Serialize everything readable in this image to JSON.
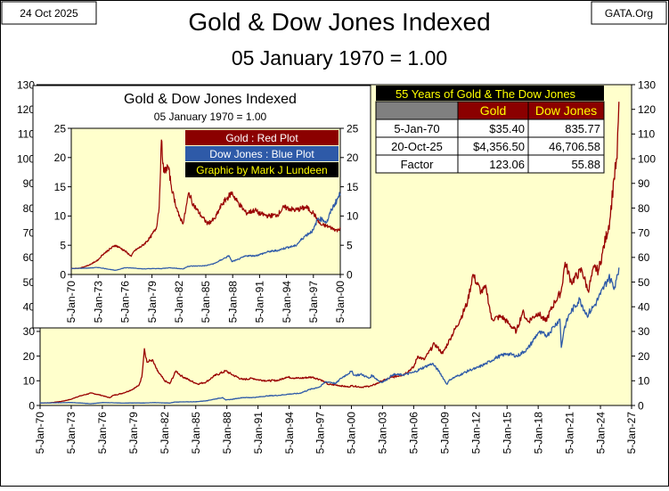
{
  "header": {
    "date": "24 Oct 2025",
    "site": "GATA.Org",
    "title": "Gold & Dow Jones Indexed",
    "subtitle": "05 January 1970 = 1.00"
  },
  "chart_data": [
    {
      "type": "line",
      "title": "Gold & Dow Jones Indexed",
      "subtitle": "05 January 1970 = 1.00",
      "xlim": [
        1970.0,
        2027.0
      ],
      "ylim": [
        0,
        130
      ],
      "y_ticks": [
        0,
        10,
        20,
        30,
        40,
        50,
        60,
        70,
        80,
        90,
        100,
        110,
        120,
        130
      ],
      "x_ticks": [
        1970,
        1973,
        1976,
        1979,
        1982,
        1985,
        1988,
        1991,
        1994,
        1997,
        2000,
        2003,
        2006,
        2009,
        2012,
        2015,
        2018,
        2021,
        2024,
        2027
      ],
      "x_tick_labels": [
        "5-Jan-70",
        "5-Jan-73",
        "5-Jan-76",
        "5-Jan-79",
        "5-Jan-82",
        "5-Jan-85",
        "5-Jan-88",
        "5-Jan-91",
        "5-Jan-94",
        "5-Jan-97",
        "5-Jan-00",
        "5-Jan-03",
        "5-Jan-06",
        "5-Jan-09",
        "5-Jan-12",
        "5-Jan-15",
        "5-Jan-18",
        "5-Jan-21",
        "5-Jan-24",
        "5-Jan-27"
      ],
      "grid": false,
      "series": [
        {
          "name": "Gold",
          "color": "#990000",
          "points": [
            [
              1970.0,
              1.0
            ],
            [
              1971.0,
              1.1
            ],
            [
              1972.0,
              1.6
            ],
            [
              1973.0,
              2.5
            ],
            [
              1973.5,
              3.4
            ],
            [
              1974.0,
              4.0
            ],
            [
              1974.9,
              5.0
            ],
            [
              1975.5,
              4.5
            ],
            [
              1976.0,
              4.0
            ],
            [
              1976.7,
              3.1
            ],
            [
              1977.0,
              4.0
            ],
            [
              1978.0,
              5.0
            ],
            [
              1978.8,
              6.3
            ],
            [
              1979.5,
              8.0
            ],
            [
              1979.8,
              11.5
            ],
            [
              1980.05,
              23.0
            ],
            [
              1980.3,
              17.5
            ],
            [
              1980.8,
              18.5
            ],
            [
              1981.3,
              14.0
            ],
            [
              1982.0,
              10.0
            ],
            [
              1982.5,
              8.8
            ],
            [
              1983.1,
              14.0
            ],
            [
              1983.6,
              12.0
            ],
            [
              1984.5,
              10.0
            ],
            [
              1985.2,
              8.7
            ],
            [
              1986.0,
              9.5
            ],
            [
              1986.8,
              12.0
            ],
            [
              1987.9,
              14.0
            ],
            [
              1988.5,
              12.5
            ],
            [
              1989.5,
              10.5
            ],
            [
              1990.5,
              11.0
            ],
            [
              1991.0,
              10.4
            ],
            [
              1992.0,
              10.0
            ],
            [
              1993.0,
              10.2
            ],
            [
              1993.7,
              11.5
            ],
            [
              1995.0,
              11.0
            ],
            [
              1996.2,
              11.5
            ],
            [
              1997.0,
              10.5
            ],
            [
              1997.8,
              8.5
            ],
            [
              1998.5,
              8.3
            ],
            [
              1999.7,
              7.5
            ],
            [
              2000.0,
              8.0
            ],
            [
              2001.0,
              7.4
            ],
            [
              2002.0,
              8.0
            ],
            [
              2003.0,
              10.0
            ],
            [
              2004.0,
              11.5
            ],
            [
              2005.0,
              12.5
            ],
            [
              2006.0,
              15.5
            ],
            [
              2006.4,
              20.0
            ],
            [
              2007.0,
              18.5
            ],
            [
              2008.0,
              25.0
            ],
            [
              2008.8,
              21.0
            ],
            [
              2009.5,
              27.0
            ],
            [
              2010.5,
              35.0
            ],
            [
              2011.2,
              42.0
            ],
            [
              2011.7,
              53.0
            ],
            [
              2012.5,
              46.0
            ],
            [
              2013.0,
              47.5
            ],
            [
              2013.5,
              35.0
            ],
            [
              2014.5,
              36.0
            ],
            [
              2015.2,
              33.0
            ],
            [
              2015.9,
              30.0
            ],
            [
              2016.5,
              38.0
            ],
            [
              2017.0,
              34.0
            ],
            [
              2018.0,
              37.5
            ],
            [
              2018.7,
              34.0
            ],
            [
              2019.6,
              42.0
            ],
            [
              2020.2,
              46.0
            ],
            [
              2020.6,
              58.0
            ],
            [
              2021.2,
              50.0
            ],
            [
              2022.2,
              55.0
            ],
            [
              2022.8,
              46.5
            ],
            [
              2023.4,
              56.0
            ],
            [
              2023.8,
              54.5
            ],
            [
              2024.2,
              62.0
            ],
            [
              2024.9,
              75.0
            ],
            [
              2025.3,
              92.0
            ],
            [
              2025.6,
              100.0
            ],
            [
              2025.72,
              115.0
            ],
            [
              2025.78,
              123.06
            ]
          ]
        },
        {
          "name": "Dow Jones",
          "color": "#2e5aa8",
          "points": [
            [
              1970.0,
              1.0
            ],
            [
              1971.0,
              1.05
            ],
            [
              1972.0,
              1.1
            ],
            [
              1973.0,
              1.2
            ],
            [
              1974.0,
              0.95
            ],
            [
              1974.9,
              0.7
            ],
            [
              1975.5,
              0.95
            ],
            [
              1976.0,
              1.15
            ],
            [
              1977.0,
              1.1
            ],
            [
              1978.0,
              0.95
            ],
            [
              1979.0,
              1.0
            ],
            [
              1980.0,
              1.0
            ],
            [
              1981.0,
              1.15
            ],
            [
              1982.5,
              0.95
            ],
            [
              1983.0,
              1.4
            ],
            [
              1984.0,
              1.45
            ],
            [
              1985.0,
              1.5
            ],
            [
              1986.0,
              1.9
            ],
            [
              1987.6,
              3.2
            ],
            [
              1987.9,
              2.2
            ],
            [
              1988.5,
              2.5
            ],
            [
              1989.5,
              3.2
            ],
            [
              1990.5,
              3.2
            ],
            [
              1991.0,
              3.4
            ],
            [
              1992.0,
              3.9
            ],
            [
              1993.0,
              4.1
            ],
            [
              1994.0,
              4.6
            ],
            [
              1995.0,
              4.9
            ],
            [
              1996.0,
              6.5
            ],
            [
              1997.0,
              7.6
            ],
            [
              1997.5,
              9.6
            ],
            [
              1998.0,
              9.4
            ],
            [
              1998.5,
              8.9
            ],
            [
              1999.0,
              11.0
            ],
            [
              2000.0,
              13.8
            ],
            [
              2000.3,
              12.2
            ],
            [
              2001.0,
              12.6
            ],
            [
              2001.7,
              11.0
            ],
            [
              2002.0,
              12.2
            ],
            [
              2002.8,
              9.4
            ],
            [
              2003.2,
              9.9
            ],
            [
              2004.0,
              12.5
            ],
            [
              2005.0,
              12.4
            ],
            [
              2006.0,
              13.4
            ],
            [
              2007.0,
              15.5
            ],
            [
              2007.8,
              17.0
            ],
            [
              2008.5,
              13.5
            ],
            [
              2009.2,
              8.6
            ],
            [
              2009.5,
              10.5
            ],
            [
              2010.5,
              12.5
            ],
            [
              2011.5,
              14.5
            ],
            [
              2012.0,
              15.0
            ],
            [
              2013.0,
              17.0
            ],
            [
              2014.0,
              19.5
            ],
            [
              2015.0,
              21.0
            ],
            [
              2016.0,
              20.0
            ],
            [
              2017.0,
              23.0
            ],
            [
              2018.0,
              29.5
            ],
            [
              2018.9,
              28.5
            ],
            [
              2019.5,
              32.0
            ],
            [
              2020.1,
              35.0
            ],
            [
              2020.23,
              23.5
            ],
            [
              2020.5,
              31.0
            ],
            [
              2021.0,
              37.0
            ],
            [
              2022.0,
              43.0
            ],
            [
              2022.7,
              36.5
            ],
            [
              2023.5,
              41.0
            ],
            [
              2024.0,
              45.0
            ],
            [
              2024.8,
              52.0
            ],
            [
              2025.1,
              50.0
            ],
            [
              2025.3,
              47.0
            ],
            [
              2025.6,
              53.0
            ],
            [
              2025.78,
              55.88
            ]
          ]
        }
      ]
    },
    {
      "type": "line",
      "title": "Gold & Dow Jones Indexed",
      "subtitle": "05 January 1970 = 1.00",
      "xlim": [
        1970.0,
        2000.0
      ],
      "ylim": [
        0,
        25
      ],
      "y_ticks": [
        0,
        5,
        10,
        15,
        20,
        25
      ],
      "x_ticks": [
        1970,
        1973,
        1976,
        1979,
        1982,
        1985,
        1988,
        1991,
        1994,
        1997,
        2000
      ],
      "x_tick_labels": [
        "5-Jan-70",
        "5-Jan-73",
        "5-Jan-76",
        "5-Jan-79",
        "5-Jan-82",
        "5-Jan-85",
        "5-Jan-88",
        "5-Jan-91",
        "5-Jan-94",
        "5-Jan-97",
        "5-Jan-00"
      ],
      "grid": false,
      "legend": {
        "placement": "top-right",
        "entries": [
          {
            "label": "Gold : Red Plot",
            "bg": "#8b0000",
            "fg": "#ffffff"
          },
          {
            "label": "Dow Jones : Blue Plot",
            "bg": "#2e5aa8",
            "fg": "#ffffff"
          },
          {
            "label": "Graphic by Mark J Lundeen",
            "bg": "#000000",
            "fg": "#ffff00"
          }
        ]
      },
      "series": [
        {
          "name": "Gold",
          "color": "#990000",
          "points": [
            [
              1970.0,
              1.0
            ],
            [
              1971.0,
              1.1
            ],
            [
              1972.0,
              1.6
            ],
            [
              1973.0,
              2.5
            ],
            [
              1973.5,
              3.4
            ],
            [
              1974.0,
              4.0
            ],
            [
              1974.9,
              5.0
            ],
            [
              1975.5,
              4.5
            ],
            [
              1976.0,
              4.0
            ],
            [
              1976.7,
              3.1
            ],
            [
              1977.0,
              4.0
            ],
            [
              1978.0,
              5.0
            ],
            [
              1978.8,
              6.3
            ],
            [
              1979.5,
              8.0
            ],
            [
              1979.8,
              11.5
            ],
            [
              1980.05,
              23.0
            ],
            [
              1980.3,
              17.5
            ],
            [
              1980.8,
              18.5
            ],
            [
              1981.3,
              14.0
            ],
            [
              1982.0,
              10.0
            ],
            [
              1982.5,
              8.8
            ],
            [
              1983.1,
              14.0
            ],
            [
              1983.6,
              12.0
            ],
            [
              1984.5,
              10.0
            ],
            [
              1985.2,
              8.7
            ],
            [
              1986.0,
              9.5
            ],
            [
              1986.8,
              12.0
            ],
            [
              1987.9,
              14.0
            ],
            [
              1988.5,
              12.5
            ],
            [
              1989.5,
              10.5
            ],
            [
              1990.5,
              11.0
            ],
            [
              1991.0,
              10.4
            ],
            [
              1992.0,
              10.0
            ],
            [
              1993.0,
              10.2
            ],
            [
              1993.7,
              11.5
            ],
            [
              1995.0,
              11.0
            ],
            [
              1996.2,
              11.5
            ],
            [
              1997.0,
              10.5
            ],
            [
              1997.8,
              8.5
            ],
            [
              1998.5,
              8.3
            ],
            [
              1999.7,
              7.5
            ],
            [
              2000.0,
              8.0
            ]
          ]
        },
        {
          "name": "Dow Jones",
          "color": "#2e5aa8",
          "points": [
            [
              1970.0,
              1.0
            ],
            [
              1971.0,
              1.05
            ],
            [
              1972.0,
              1.1
            ],
            [
              1973.0,
              1.2
            ],
            [
              1974.0,
              0.95
            ],
            [
              1974.9,
              0.7
            ],
            [
              1975.5,
              0.95
            ],
            [
              1976.0,
              1.15
            ],
            [
              1977.0,
              1.1
            ],
            [
              1978.0,
              0.95
            ],
            [
              1979.0,
              1.0
            ],
            [
              1980.0,
              1.0
            ],
            [
              1981.0,
              1.15
            ],
            [
              1982.5,
              0.95
            ],
            [
              1983.0,
              1.4
            ],
            [
              1984.0,
              1.45
            ],
            [
              1985.0,
              1.5
            ],
            [
              1986.0,
              1.9
            ],
            [
              1987.6,
              3.2
            ],
            [
              1987.9,
              2.2
            ],
            [
              1988.5,
              2.5
            ],
            [
              1989.5,
              3.2
            ],
            [
              1990.5,
              3.2
            ],
            [
              1991.0,
              3.4
            ],
            [
              1992.0,
              3.9
            ],
            [
              1993.0,
              4.1
            ],
            [
              1994.0,
              4.6
            ],
            [
              1995.0,
              4.9
            ],
            [
              1996.0,
              6.5
            ],
            [
              1997.0,
              7.6
            ],
            [
              1997.5,
              9.6
            ],
            [
              1998.0,
              9.4
            ],
            [
              1998.5,
              8.9
            ],
            [
              1999.0,
              11.0
            ],
            [
              2000.0,
              13.8
            ]
          ]
        }
      ]
    },
    {
      "type": "table",
      "title": "55 Years of Gold & The Dow Jones",
      "columns": [
        "",
        "Gold",
        "Dow Jones"
      ],
      "rows": [
        [
          "5-Jan-70",
          "$35.40",
          "835.77"
        ],
        [
          "20-Oct-25",
          "$4,356.50",
          "46,706.58"
        ],
        [
          "Factor",
          "123.06",
          "55.88"
        ]
      ],
      "colors": {
        "title_bg": "#000000",
        "title_fg": "#ffff00",
        "header_bg": "#8b0000",
        "header_fg": "#ffff00",
        "corner_bg": "#808080"
      }
    }
  ]
}
